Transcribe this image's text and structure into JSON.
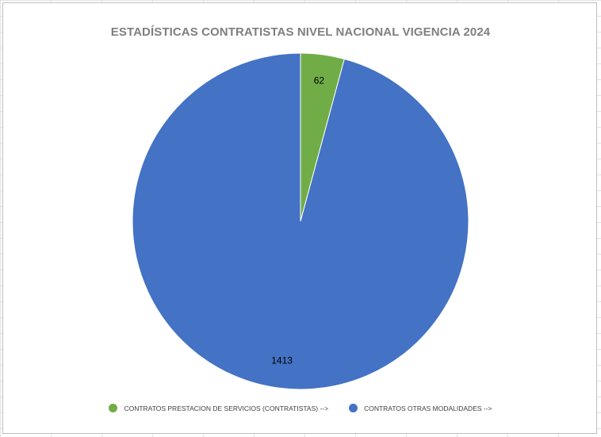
{
  "chart_data": {
    "type": "pie",
    "title": "ESTADÍSTICAS CONTRATISTAS NIVEL NACIONAL VIGENCIA 2024",
    "categories": [
      "CONTRATOS PRESTACION DE SERVICIOS (CONTRATISTAS) -->",
      "CONTRATOS OTRAS MODALIDADES -->"
    ],
    "values": [
      62,
      1413
    ],
    "data_labels": [
      "62",
      "1413"
    ],
    "colors": [
      "#70ad47",
      "#4472c4"
    ],
    "legend_position": "bottom",
    "grid": false
  }
}
